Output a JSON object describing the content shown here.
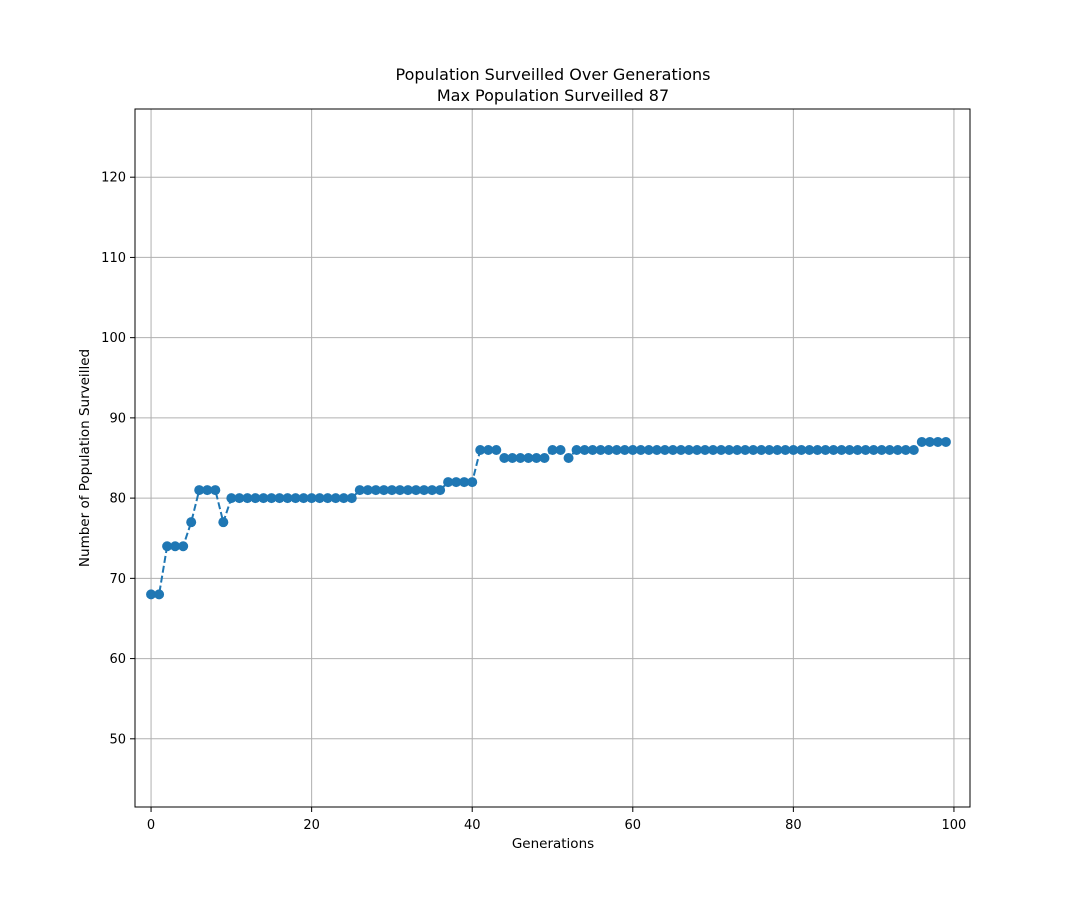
{
  "chart_data": {
    "type": "line",
    "title": "Population Surveilled Over Generations",
    "subtitle": "Max Population Surveilled 87",
    "xlabel": "Generations",
    "ylabel": "Number of Population Surveilled",
    "xlim": [
      -2,
      102
    ],
    "ylim": [
      41.5,
      128.5
    ],
    "xticks": [
      0,
      20,
      40,
      60,
      80,
      100
    ],
    "yticks": [
      50,
      60,
      70,
      80,
      90,
      100,
      110,
      120
    ],
    "grid": true,
    "line_style": "dashed",
    "marker": "circle",
    "color": "#1f77b4",
    "series": [
      {
        "x": [
          0,
          1,
          2,
          3,
          4,
          5,
          6,
          7,
          8,
          9,
          10,
          11,
          12,
          13,
          14,
          15,
          16,
          17,
          18,
          19,
          20,
          21,
          22,
          23,
          24,
          25,
          26,
          27,
          28,
          29,
          30,
          31,
          32,
          33,
          34,
          35,
          36,
          37,
          38,
          39,
          40,
          41,
          42,
          43,
          44,
          45,
          46,
          47,
          48,
          49,
          50,
          51,
          52,
          53,
          54,
          55,
          56,
          57,
          58,
          59,
          60,
          61,
          62,
          63,
          64,
          65,
          66,
          67,
          68,
          69,
          70,
          71,
          72,
          73,
          74,
          75,
          76,
          77,
          78,
          79,
          80,
          81,
          82,
          83,
          84,
          85,
          86,
          87,
          88,
          89,
          90,
          91,
          92,
          93,
          94,
          95,
          96,
          97,
          98,
          99
        ],
        "values": [
          68,
          68,
          74,
          74,
          74,
          77,
          81,
          81,
          81,
          77,
          80,
          80,
          80,
          80,
          80,
          80,
          80,
          80,
          80,
          80,
          80,
          80,
          80,
          80,
          80,
          80,
          81,
          81,
          81,
          81,
          81,
          81,
          81,
          81,
          81,
          81,
          81,
          82,
          82,
          82,
          82,
          86,
          86,
          86,
          85,
          85,
          85,
          85,
          85,
          85,
          86,
          86,
          85,
          86,
          86,
          86,
          86,
          86,
          86,
          86,
          86,
          86,
          86,
          86,
          86,
          86,
          86,
          86,
          86,
          86,
          86,
          86,
          86,
          86,
          86,
          86,
          86,
          86,
          86,
          86,
          86,
          86,
          86,
          86,
          86,
          86,
          86,
          86,
          86,
          86,
          86,
          86,
          86,
          86,
          86,
          86,
          87,
          87,
          87,
          87
        ]
      }
    ]
  }
}
